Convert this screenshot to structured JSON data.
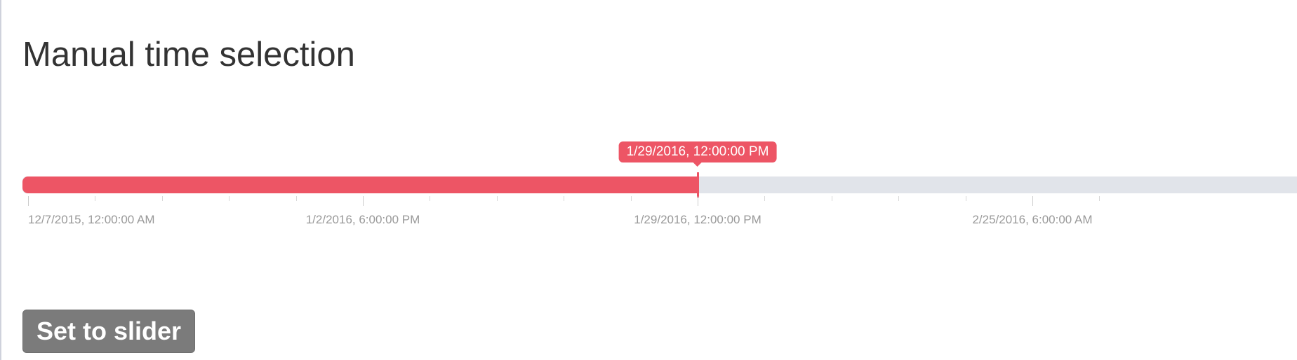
{
  "heading": "Manual time selection",
  "slider": {
    "selected_label": "1/29/2016, 12:00:00 PM",
    "selected_fraction": 0.6,
    "major_ticks": [
      {
        "label": "12/7/2015, 12:00:00 AM",
        "fraction": 0.0
      },
      {
        "label": "1/2/2016, 6:00:00 PM",
        "fraction": 0.3
      },
      {
        "label": "1/29/2016, 12:00:00 PM",
        "fraction": 0.6
      },
      {
        "label": "2/25/2016, 6:00:00 AM",
        "fraction": 0.9
      }
    ],
    "minor_ticks_per_major": 5,
    "colors": {
      "fill": "#ed5565",
      "track": "#e1e4ea"
    }
  },
  "button": {
    "label": "Set to slider",
    "color": "#7b7b7b"
  }
}
